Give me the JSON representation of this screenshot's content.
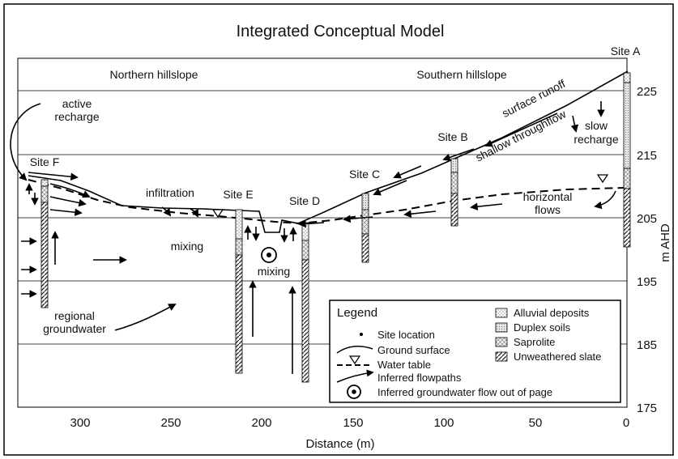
{
  "title": "Integrated Conceptual Model",
  "xlabel": "Distance (m)",
  "ylabel": "m AHD",
  "x_ticks": [
    "300",
    "250",
    "200",
    "150",
    "100",
    "50",
    "0"
  ],
  "y_ticks": [
    "225",
    "215",
    "205",
    "195",
    "185",
    "175"
  ],
  "regions": {
    "north": "Northern hillslope",
    "south": "Southern hillslope"
  },
  "sites": {
    "a": "Site A",
    "b": "Site B",
    "c": "Site C",
    "d": "Site D",
    "e": "Site E",
    "f": "Site F"
  },
  "annotations": {
    "active_recharge_1": "active",
    "active_recharge_2": "recharge",
    "infiltration": "infiltration",
    "mixing_left": "mixing",
    "mixing_center": "mixing",
    "regional_1": "regional",
    "regional_2": "groundwater",
    "surface_runoff": "surface runoff",
    "shallow_throughflow": "shallow throughflow",
    "slow_recharge_1": "slow",
    "slow_recharge_2": "recharge",
    "horizontal_1": "horizontal",
    "horizontal_2": "flows"
  },
  "legend": {
    "title": "Legend",
    "site_location": "Site location",
    "ground_surface": "Ground surface",
    "water_table": "Water table",
    "flowpaths": "Inferred flowpaths",
    "gw_out": "Inferred groundwater flow out of page",
    "alluvial": "Alluvial deposits",
    "duplex": "Duplex soils",
    "saprolite": "Saprolite",
    "slate": "Unweathered slate"
  }
}
